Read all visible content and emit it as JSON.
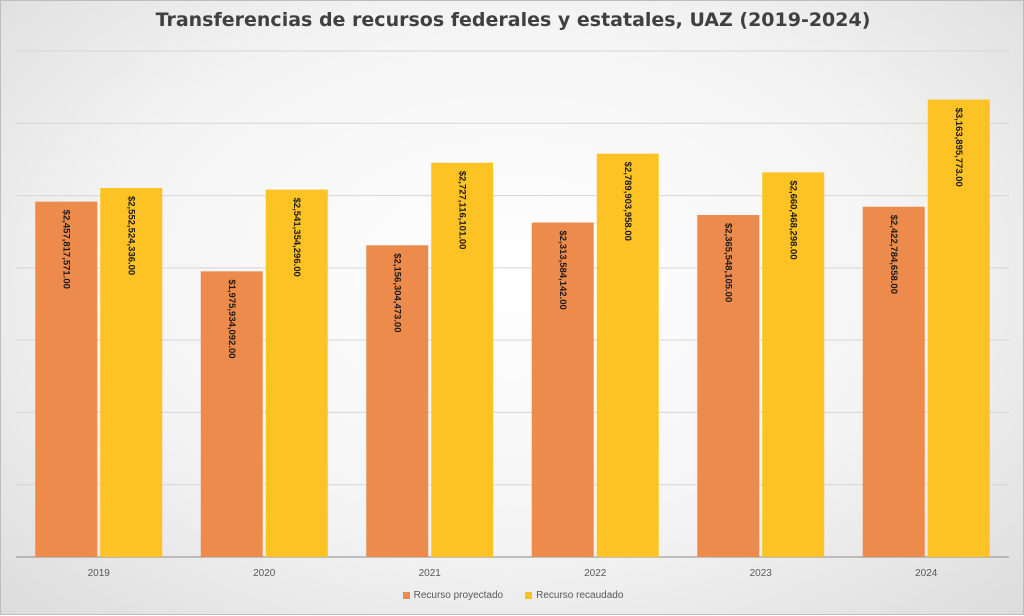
{
  "chart_data": {
    "type": "bar",
    "title": "Transferencias de recursos federales y estatales, UAZ (2019-2024)",
    "categories": [
      "2019",
      "2020",
      "2021",
      "2022",
      "2023",
      "2024"
    ],
    "series": [
      {
        "name": "Recurso proyectado",
        "color": "#ed8b4c",
        "values": [
          2457817571.0,
          1975934092.0,
          2156304473.0,
          2313584142.0,
          2365548105.0,
          2422784658.0
        ],
        "labels": [
          "$2,457,817,571.00",
          "$1,975,934,092.00",
          "$2,156,304,473.00",
          "$2,313,584,142.00",
          "$2,365,548,105.00",
          "$2,422,784,658.00"
        ]
      },
      {
        "name": "Recurso recaudado",
        "color": "#fdc325",
        "values": [
          2552524336.0,
          2541354296.0,
          2727116101.0,
          2789903958.0,
          2660468298.0,
          3163895773.0
        ],
        "labels": [
          "$2,552,524,336.00",
          "$2,541,354,296.00",
          "$2,727,116,101.00",
          "$2,789,903,958.00",
          "$2,660,468,298.00",
          "$3,163,895,773.00"
        ]
      }
    ],
    "ylim": [
      0,
      3500000000
    ],
    "gridlines": true,
    "legend_position": "bottom",
    "data_label_position": "inside-end-rotated"
  }
}
